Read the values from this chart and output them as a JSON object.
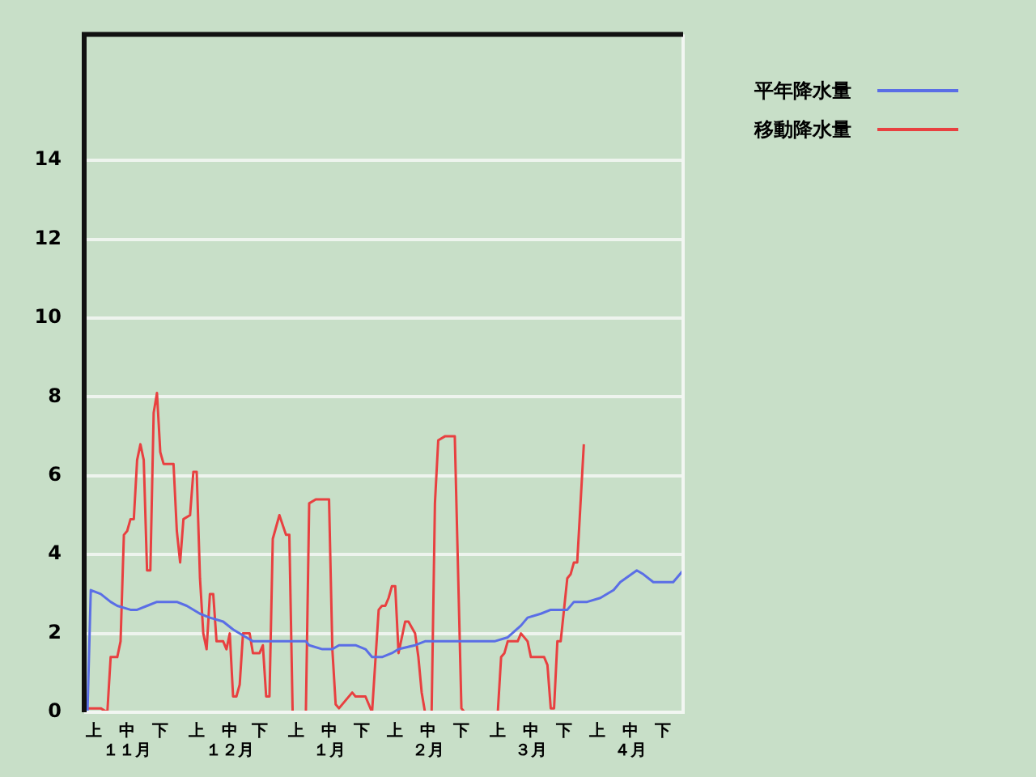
{
  "chart_data": {
    "type": "line",
    "ylim": [
      0,
      17.2
    ],
    "yticks": [
      0,
      2,
      4,
      6,
      8,
      10,
      12,
      14
    ],
    "categories": [
      null,
      null,
      null,
      "上",
      null,
      null,
      null,
      null,
      null,
      null,
      null,
      null,
      null,
      "中１１月",
      null,
      null,
      null,
      null,
      null,
      null,
      null,
      null,
      null,
      "下",
      null,
      null,
      null,
      null,
      null,
      null,
      null,
      null,
      null,
      null,
      "上",
      null,
      null,
      null,
      null,
      null,
      null,
      null,
      null,
      null,
      "中１２月",
      null,
      null,
      null,
      null,
      null,
      null,
      null,
      null,
      "下",
      null,
      null,
      null,
      null,
      null,
      null,
      null,
      null,
      null,
      null,
      "上",
      null,
      null,
      null,
      null,
      null,
      null,
      null,
      null,
      null,
      "中１月",
      null,
      null,
      null,
      null,
      null,
      null,
      null,
      null,
      null,
      "下",
      null,
      null,
      null,
      null,
      null,
      null,
      null,
      null,
      null,
      "上",
      null,
      null,
      null,
      null,
      null,
      null,
      null,
      null,
      null,
      "中２月",
      null,
      null,
      null,
      null,
      null,
      null,
      null,
      null,
      null,
      "下",
      null,
      null,
      null,
      null,
      null,
      null,
      null,
      null,
      null,
      null,
      "上",
      null,
      null,
      null,
      null,
      null,
      null,
      null,
      null,
      null,
      "中３月",
      null,
      null,
      null,
      null,
      null,
      null,
      null,
      null,
      null,
      "下",
      null,
      null,
      null,
      null,
      null,
      null,
      null,
      null,
      null,
      "上",
      null,
      null,
      null,
      null,
      null,
      null,
      null,
      null,
      null,
      "中４月",
      null,
      null,
      null,
      null,
      null,
      null,
      null,
      null,
      null,
      "下",
      null,
      null,
      null,
      null,
      null,
      null
    ],
    "grid": "y",
    "legend": "top right",
    "marker": "none",
    "line_style": "solid",
    "series": [
      {
        "name": "平年降水量",
        "color": "#5a6ee6",
        "values": [
          null,
          0,
          3.1,
          null,
          null,
          3.0,
          null,
          null,
          2.8,
          null,
          2.7,
          null,
          null,
          null,
          2.6,
          null,
          2.6,
          null,
          null,
          2.7,
          null,
          null,
          2.8,
          null,
          null,
          null,
          null,
          null,
          2.8,
          null,
          null,
          2.7,
          null,
          null,
          null,
          2.5,
          null,
          null,
          2.4,
          null,
          null,
          null,
          2.3,
          null,
          null,
          2.1,
          null,
          null,
          null,
          1.9,
          null,
          1.8,
          null,
          null,
          null,
          null,
          null,
          null,
          null,
          null,
          null,
          null,
          null,
          null,
          null,
          null,
          null,
          1.8,
          1.7,
          null,
          null,
          null,
          1.6,
          null,
          null,
          1.6,
          null,
          1.7,
          null,
          null,
          null,
          null,
          1.7,
          null,
          null,
          1.6,
          null,
          1.4,
          null,
          null,
          1.4,
          null,
          null,
          1.5,
          null,
          1.6,
          null,
          null,
          null,
          null,
          1.7,
          null,
          null,
          1.8,
          null,
          null,
          null,
          null,
          null,
          null,
          1.8,
          1.8,
          null,
          null,
          null,
          null,
          null,
          1.8,
          1.8,
          null,
          null,
          null,
          null,
          null,
          1.8,
          null,
          null,
          null,
          1.9,
          null,
          null,
          null,
          2.2,
          null,
          2.4,
          null,
          null,
          null,
          2.5,
          null,
          null,
          2.6,
          null,
          null,
          null,
          null,
          2.6,
          null,
          2.8,
          null,
          null,
          null,
          2.8,
          null,
          null,
          null,
          2.9,
          null,
          null,
          null,
          3.1,
          null,
          3.3,
          null,
          null,
          null,
          null,
          3.6,
          null,
          3.5,
          null,
          null,
          3.3,
          null,
          null,
          null,
          null,
          null,
          3.3,
          null,
          null,
          3.6
        ]
      },
      {
        "name": "移動降水量",
        "color": "#e84040",
        "values": [
          null,
          0.1,
          null,
          null,
          null,
          0.1,
          null,
          0,
          1.4,
          null,
          1.4,
          1.8,
          4.5,
          4.6,
          4.9,
          4.9,
          6.4,
          6.8,
          6.4,
          3.6,
          3.6,
          7.6,
          8.1,
          6.6,
          6.3,
          null,
          null,
          6.3,
          4.6,
          3.8,
          4.9,
          null,
          5.0,
          6.1,
          6.1,
          3.4,
          2.0,
          1.6,
          3.0,
          3.0,
          1.8,
          null,
          1.8,
          1.6,
          2.0,
          0.4,
          0.4,
          0.7,
          2.0,
          null,
          2.0,
          1.5,
          null,
          1.5,
          1.7,
          0.4,
          0.4,
          4.4,
          null,
          5.0,
          null,
          4.5,
          4.5,
          0,
          null,
          null,
          null,
          0,
          5.3,
          null,
          5.4,
          null,
          null,
          null,
          5.4,
          1.6,
          0.2,
          0.1,
          null,
          0.3,
          null,
          0.5,
          0.4,
          null,
          null,
          0.4,
          0.2,
          0,
          null,
          2.6,
          2.7,
          2.7,
          2.9,
          3.2,
          3.2,
          1.5,
          null,
          2.3,
          2.3,
          null,
          2.0,
          1.4,
          0.5,
          0,
          null,
          0,
          5.3,
          6.9,
          null,
          7.0,
          null,
          null,
          7.0,
          null,
          0.1,
          0,
          null,
          null,
          null,
          null,
          null,
          null,
          null,
          null,
          null,
          0,
          1.4,
          1.5,
          1.8,
          null,
          null,
          1.8,
          2.0,
          null,
          1.8,
          1.4,
          null,
          null,
          null,
          1.4,
          1.2,
          0.1,
          0.1,
          1.8,
          1.8,
          null,
          3.4,
          3.5,
          3.8,
          3.8,
          null,
          6.8,
          null,
          null,
          null,
          null,
          null,
          null,
          null,
          null,
          null,
          null,
          null,
          null,
          null,
          null,
          null,
          null,
          null,
          null,
          null,
          null,
          null,
          null,
          null,
          null,
          null,
          null,
          null,
          null,
          null,
          null
        ]
      }
    ]
  }
}
